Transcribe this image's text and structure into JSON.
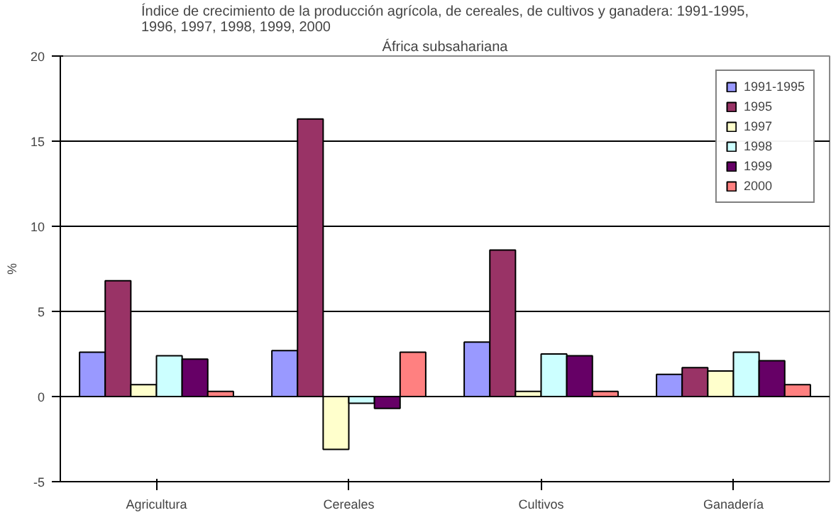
{
  "chart_data": {
    "type": "bar",
    "title": "Índice de crecimiento de la producción agrícola, de cereales, de cultivos y ganadera: 1991-1995,\n1996, 1997, 1998, 1999, 2000",
    "subtitle": "África subsahariana",
    "ylabel": "%",
    "categories": [
      "Agricultura",
      "Cereales",
      "Cultivos",
      "Ganadería"
    ],
    "series": [
      {
        "name": "1991-1995",
        "color": "#9999ff",
        "values": [
          2.6,
          2.7,
          3.2,
          1.3
        ]
      },
      {
        "name": "1995",
        "color": "#993366",
        "values": [
          6.8,
          16.3,
          8.6,
          1.7
        ]
      },
      {
        "name": "1997",
        "color": "#ffffcc",
        "values": [
          0.7,
          -3.1,
          0.3,
          1.5
        ]
      },
      {
        "name": "1998",
        "color": "#ccffff",
        "values": [
          2.4,
          -0.4,
          2.5,
          2.6
        ]
      },
      {
        "name": "1999",
        "color": "#660066",
        "values": [
          2.2,
          -0.7,
          2.4,
          2.1
        ]
      },
      {
        "name": "2000",
        "color": "#ff8080",
        "values": [
          0.3,
          2.6,
          0.3,
          0.7
        ]
      }
    ],
    "ylim": [
      -5,
      20
    ],
    "yticks": [
      -5,
      0,
      5,
      10,
      15,
      20
    ],
    "grid": "y",
    "legend": "top right"
  }
}
